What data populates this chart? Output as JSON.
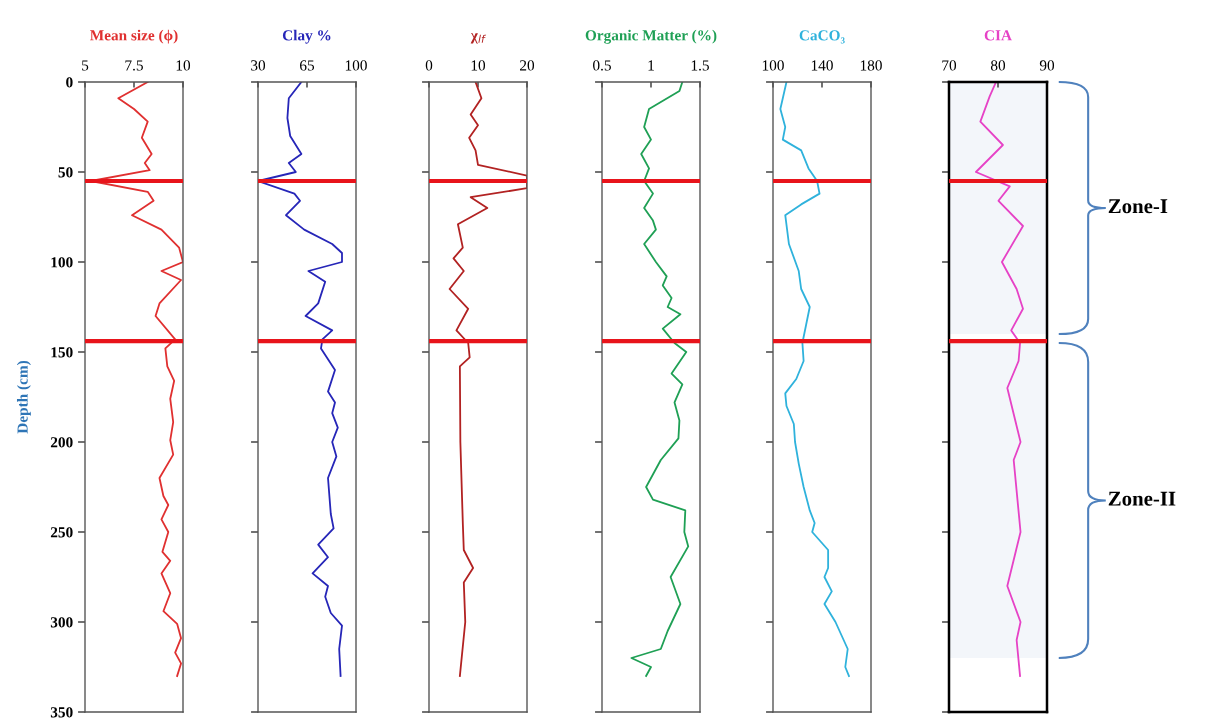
{
  "chart_data": [
    {
      "type": "line",
      "title": "Mean size (ϕ)",
      "ylabel": "Depth (cm)",
      "xlim": [
        5,
        10
      ],
      "xticks": [
        5,
        7.5,
        10
      ],
      "ylim": [
        350,
        0
      ],
      "yticks": [
        0,
        50,
        100,
        150,
        200,
        250,
        300,
        350
      ],
      "grid": false,
      "series": [
        {
          "color": "#e03030",
          "x": [
            8.2,
            6.7,
            7.5,
            8.2,
            7.9,
            8.4,
            8.05,
            8.3,
            5.3,
            8.2,
            8.5,
            7.4,
            8.9,
            9.8,
            10.0,
            8.9,
            9.9,
            8.8,
            8.6,
            9.6,
            9.1,
            9.2,
            9.55,
            9.35,
            9.5,
            9.35,
            9.5,
            8.8,
            9.0,
            9.25,
            8.9,
            9.25,
            8.95,
            9.35,
            8.9,
            9.35,
            9.0,
            9.7,
            9.9,
            9.6,
            9.9,
            9.7
          ],
          "values": [
            0,
            9,
            15,
            22,
            31,
            40,
            45,
            49,
            55,
            61,
            66,
            74,
            82,
            92,
            100,
            105,
            110,
            123,
            130,
            143,
            148,
            158,
            166,
            176,
            189,
            199,
            207,
            220,
            230,
            235,
            243,
            250,
            261,
            266,
            273,
            284,
            294,
            301,
            309,
            317,
            323,
            330
          ]
        }
      ],
      "ref_lines": [
        {
          "axis": "y",
          "value": 55,
          "color": "#e8141b"
        },
        {
          "axis": "y",
          "value": 144,
          "color": "#e8141b"
        }
      ]
    },
    {
      "type": "line",
      "title": "Clay %",
      "xlim": [
        30,
        100
      ],
      "xticks": [
        30,
        65,
        100
      ],
      "ylim": [
        350,
        0
      ],
      "yticks": [
        0,
        50,
        100,
        150,
        200,
        250,
        300,
        350
      ],
      "tick_labels": "x",
      "grid": false,
      "series": [
        {
          "color": "#2626b8",
          "x": [
            61,
            52,
            51,
            53,
            61,
            52,
            57,
            30,
            56,
            60,
            50,
            63,
            83,
            90,
            90,
            66,
            78,
            73,
            64,
            83,
            76,
            75,
            85,
            80,
            85,
            83,
            87,
            83,
            86,
            80,
            82,
            84,
            73,
            80,
            69,
            80,
            78,
            82,
            90,
            88,
            89
          ],
          "values": [
            0,
            9,
            20,
            30,
            40,
            45,
            50,
            55,
            62,
            66,
            74,
            82,
            90,
            95,
            100,
            105,
            111,
            123,
            130,
            138,
            143,
            148,
            160,
            172,
            178,
            184,
            192,
            200,
            208,
            220,
            240,
            248,
            257,
            264,
            273,
            280,
            286,
            295,
            302,
            315,
            330
          ]
        }
      ],
      "ref_lines": [
        {
          "axis": "y",
          "value": 55,
          "color": "#e8141b"
        },
        {
          "axis": "y",
          "value": 144,
          "color": "#e8141b"
        }
      ]
    },
    {
      "type": "line",
      "title": "χ$_{lf}$",
      "xlim": [
        0,
        20
      ],
      "xticks": [
        0,
        10,
        20
      ],
      "ylim": [
        350,
        0
      ],
      "yticks": [
        0,
        50,
        100,
        150,
        200,
        250,
        300,
        350
      ],
      "tick_labels": "x",
      "grid": false,
      "series": [
        {
          "color": "#b22222",
          "x": [
            9.5,
            10.7,
            8.5,
            10,
            8.2,
            9.5,
            10,
            20,
            20,
            8.5,
            11.9,
            5.9,
            6.9,
            5.0,
            7.1,
            4.2,
            8.0,
            5.6,
            8.0,
            8.3,
            6.3,
            6.4,
            6.9,
            7.1,
            9.0,
            7.1,
            7.4,
            6.3
          ],
          "values": [
            0,
            9,
            18,
            24,
            31,
            38,
            46,
            52,
            59,
            64,
            70,
            79,
            92,
            98,
            105,
            115,
            126,
            138,
            145,
            153,
            158,
            200,
            245,
            260,
            270,
            278,
            300,
            330
          ]
        }
      ],
      "ref_lines": [
        {
          "axis": "y",
          "value": 55,
          "color": "#e8141b"
        },
        {
          "axis": "y",
          "value": 144,
          "color": "#e8141b"
        }
      ]
    },
    {
      "type": "line",
      "title": "Organic Matter (%)",
      "xlim": [
        0.5,
        1.5
      ],
      "xticks": [
        0.5,
        1,
        1.5
      ],
      "ylim": [
        350,
        0
      ],
      "yticks": [
        0,
        50,
        100,
        150,
        200,
        250,
        300,
        350
      ],
      "tick_labels": "x",
      "grid": false,
      "series": [
        {
          "color": "#1fa055",
          "x": [
            1.32,
            1.29,
            0.98,
            0.93,
            1.0,
            0.9,
            0.98,
            0.93,
            1.02,
            0.93,
            1.02,
            1.05,
            0.93,
            1.05,
            1.16,
            1.12,
            1.21,
            1.17,
            1.3,
            1.12,
            1.24,
            1.36,
            1.21,
            1.32,
            1.24,
            1.29,
            1.28,
            1.1,
            0.95,
            1.02,
            1.35,
            1.34,
            1.38,
            1.2,
            1.3,
            1.17,
            1.1,
            0.8,
            1.0,
            0.95
          ],
          "values": [
            0,
            5,
            15,
            25,
            32,
            40,
            48,
            55,
            62,
            70,
            77,
            82,
            90,
            100,
            108,
            113,
            120,
            125,
            129,
            137,
            145,
            150,
            162,
            168,
            178,
            188,
            198,
            210,
            225,
            232,
            238,
            250,
            258,
            275,
            290,
            305,
            315,
            320,
            325,
            330
          ]
        }
      ],
      "ref_lines": [
        {
          "axis": "y",
          "value": 55,
          "color": "#e8141b"
        },
        {
          "axis": "y",
          "value": 144,
          "color": "#e8141b"
        }
      ]
    },
    {
      "type": "line",
      "title": "CaCO₃",
      "xlim": [
        100,
        180
      ],
      "xticks": [
        100,
        140,
        180
      ],
      "ylim": [
        350,
        0
      ],
      "yticks": [
        0,
        50,
        100,
        150,
        200,
        250,
        300,
        350
      ],
      "tick_labels": "x",
      "grid": false,
      "series": [
        {
          "color": "#2fb2dc",
          "x": [
            111,
            106,
            110,
            108,
            123,
            129,
            136,
            138,
            123,
            110,
            113,
            121,
            123,
            130,
            127,
            124,
            125,
            119,
            110,
            111,
            117,
            118,
            121,
            125,
            130,
            134,
            132,
            145,
            145,
            142,
            148,
            142,
            151,
            161,
            159,
            162
          ],
          "values": [
            0,
            15,
            25,
            32,
            38,
            48,
            55,
            62,
            68,
            74,
            90,
            105,
            115,
            125,
            135,
            145,
            155,
            165,
            173,
            180,
            190,
            200,
            212,
            225,
            238,
            245,
            250,
            260,
            270,
            275,
            283,
            290,
            300,
            315,
            325,
            330
          ]
        }
      ],
      "ref_lines": [
        {
          "axis": "y",
          "value": 55,
          "color": "#e8141b"
        },
        {
          "axis": "y",
          "value": 144,
          "color": "#e8141b"
        }
      ]
    },
    {
      "type": "line",
      "title": "CIA",
      "xlim": [
        70,
        90
      ],
      "xticks": [
        70,
        80,
        90
      ],
      "ylim": [
        350,
        0
      ],
      "yticks": [
        0,
        50,
        100,
        150,
        200,
        250,
        300,
        350
      ],
      "tick_labels": "x",
      "grid": false,
      "series": [
        {
          "color": "#e642c6",
          "x": [
            79.6,
            78.3,
            76.4,
            81.0,
            75.5,
            82.4,
            80.1,
            85.1,
            80.8,
            83.8,
            85.1,
            82.7,
            84.5,
            84.2,
            81.9,
            84.6,
            83.2,
            84.6,
            81.9,
            84.6,
            83.8,
            84.5
          ],
          "values": [
            0,
            8,
            22,
            35,
            50,
            58,
            66,
            80,
            100,
            115,
            126,
            138,
            145,
            155,
            170,
            200,
            210,
            250,
            280,
            300,
            310,
            330
          ]
        }
      ],
      "ref_lines": [
        {
          "axis": "y",
          "value": 55,
          "color": "#e8141b"
        },
        {
          "axis": "y",
          "value": 144,
          "color": "#e8141b"
        }
      ],
      "bands": [
        {
          "axis": "y",
          "from": 0,
          "to": 140,
          "label": "Zone-I",
          "color": "#4f81bd"
        },
        {
          "axis": "y",
          "from": 145,
          "to": 320,
          "label": "Zone-II",
          "color": "#4f81bd"
        }
      ]
    }
  ]
}
